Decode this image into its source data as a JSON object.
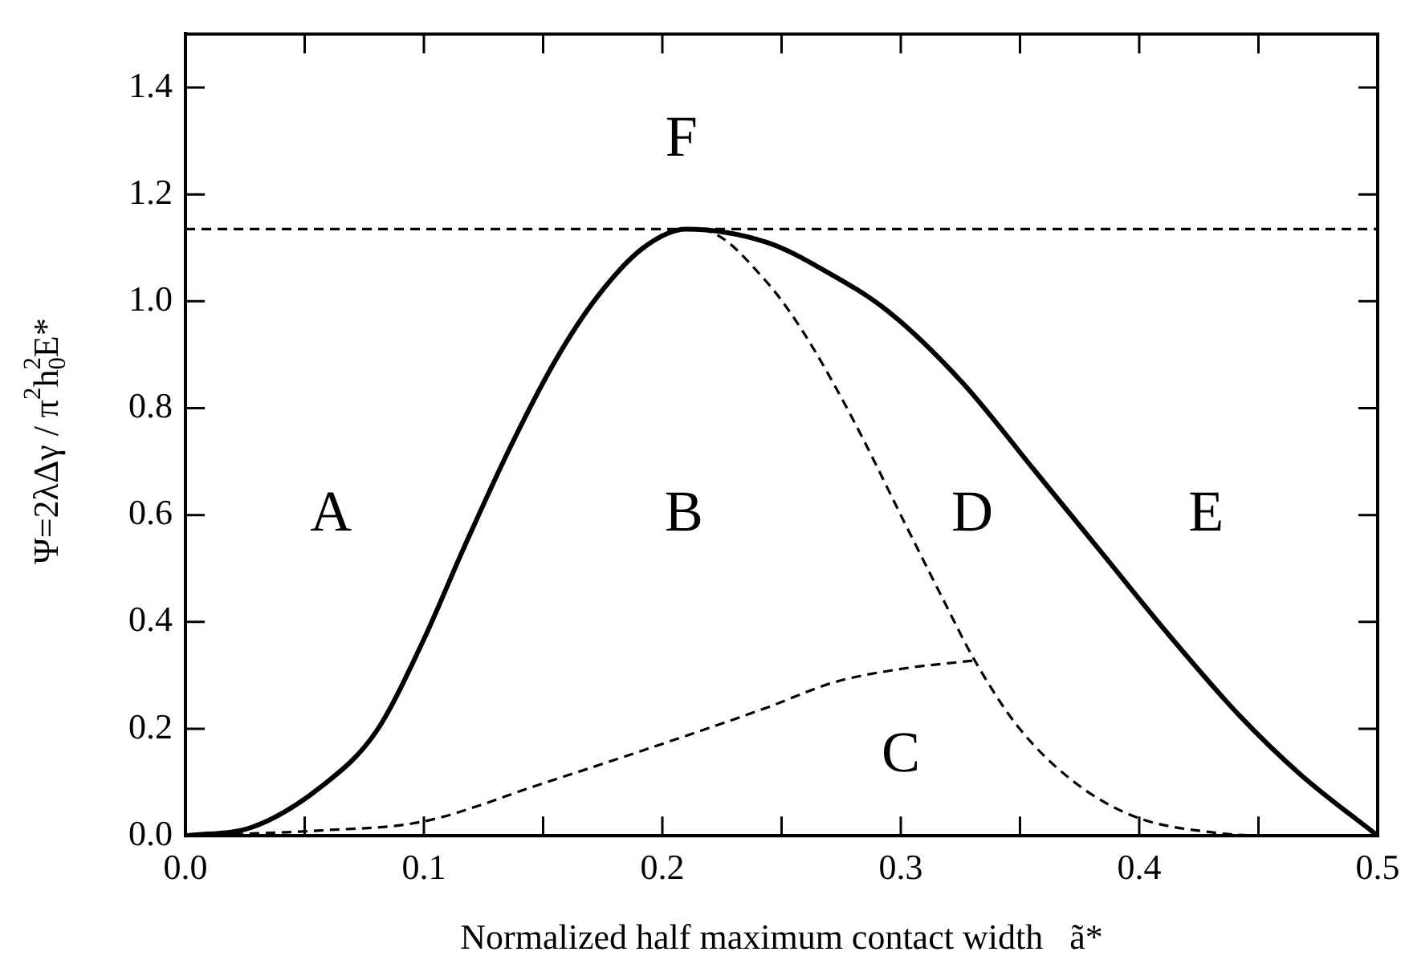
{
  "chart_data": {
    "type": "line",
    "xlabel": "Normalized half maximum contact width   ã*",
    "ylabel": "Ψ=2λΔγ / π$^{2}$h$_{0}$$^{2}$E*",
    "xlim": [
      0,
      0.5
    ],
    "ylim": [
      0,
      1.5
    ],
    "xticks": [
      {
        "value": 0,
        "label": "0.0"
      },
      {
        "value": 0.05,
        "label": null
      },
      {
        "value": 0.1,
        "label": "0.1"
      },
      {
        "value": 0.15,
        "label": null
      },
      {
        "value": 0.2,
        "label": "0.2"
      },
      {
        "value": 0.25,
        "label": null
      },
      {
        "value": 0.3,
        "label": "0.3"
      },
      {
        "value": 0.35,
        "label": null
      },
      {
        "value": 0.4,
        "label": "0.4"
      },
      {
        "value": 0.45,
        "label": null
      },
      {
        "value": 0.5,
        "label": "0.5"
      }
    ],
    "yticks": [
      {
        "value": 0,
        "label": "0.0"
      },
      {
        "value": 0.2,
        "label": "0.2"
      },
      {
        "value": 0.4,
        "label": "0.4"
      },
      {
        "value": 0.6,
        "label": "0.6"
      },
      {
        "value": 0.8,
        "label": "0.8"
      },
      {
        "value": 1,
        "label": "1.0"
      },
      {
        "value": 1.2,
        "label": "1.2"
      },
      {
        "value": 1.4,
        "label": "1.4"
      }
    ],
    "grid": false,
    "legend": false,
    "marker": "none",
    "series": [
      {
        "color": "#000000",
        "line_style": "solid",
        "x": [
          0,
          0.028,
          0.057,
          0.08,
          0.099,
          0.117,
          0.136,
          0.155,
          0.173,
          0.192,
          0.21,
          0.244,
          0.267,
          0.295,
          0.326,
          0.356,
          0.384,
          0.412,
          0.442,
          0.468,
          0.5
        ],
        "values": [
          0,
          0.016,
          0.092,
          0.195,
          0.358,
          0.541,
          0.725,
          0.888,
          1.01,
          1.1,
          1.135,
          1.11,
          1.06,
          0.98,
          0.847,
          0.684,
          0.531,
          0.378,
          0.225,
          0.113,
          0
        ]
      },
      {
        "color": "#000000",
        "line_style": "dashed",
        "x": [
          0.21,
          0.22,
          0.243,
          0.258,
          0.279,
          0.302,
          0.318,
          0.331,
          0.349,
          0.372,
          0.398,
          0.431,
          0.455,
          0.5
        ],
        "values": [
          1.135,
          1.13,
          1.04,
          0.95,
          0.787,
          0.582,
          0.44,
          0.328,
          0.205,
          0.103,
          0.036,
          0.006,
          0,
          0
        ]
      },
      {
        "color": "#000000",
        "line_style": "dashed",
        "x": [
          0,
          0.057,
          0.099,
          0.15,
          0.208,
          0.244,
          0.272,
          0.3,
          0.331
        ],
        "values": [
          0,
          0.01,
          0.026,
          0.098,
          0.184,
          0.24,
          0.287,
          0.312,
          0.328
        ]
      }
    ],
    "ref_lines": [
      {
        "axis": "y",
        "value": 1.135,
        "color": "#000000",
        "line_style": "dashed"
      }
    ],
    "annotations": [
      "A",
      "B",
      "C",
      "D",
      "E",
      "F"
    ]
  }
}
